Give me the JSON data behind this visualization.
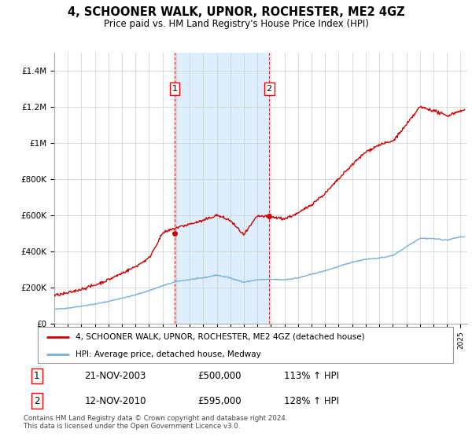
{
  "title": "4, SCHOONER WALK, UPNOR, ROCHESTER, ME2 4GZ",
  "subtitle": "Price paid vs. HM Land Registry's House Price Index (HPI)",
  "legend_line1": "4, SCHOONER WALK, UPNOR, ROCHESTER, ME2 4GZ (detached house)",
  "legend_line2": "HPI: Average price, detached house, Medway",
  "annotation1_label": "1",
  "annotation1_date": "21-NOV-2003",
  "annotation1_price": "£500,000",
  "annotation1_hpi": "113% ↑ HPI",
  "annotation2_label": "2",
  "annotation2_date": "12-NOV-2010",
  "annotation2_price": "£595,000",
  "annotation2_hpi": "128% ↑ HPI",
  "footer": "Contains HM Land Registry data © Crown copyright and database right 2024.\nThis data is licensed under the Open Government Licence v3.0.",
  "sale1_year": 2003.89,
  "sale1_price": 500000,
  "sale2_year": 2010.87,
  "sale2_price": 595000,
  "red_color": "#cc0000",
  "blue_color": "#7ab0d4",
  "highlight_color": "#ddeeff",
  "ylim_max": 1500000,
  "ytick_values": [
    0,
    200000,
    400000,
    600000,
    800000,
    1000000,
    1200000,
    1400000
  ],
  "ytick_labels": [
    "£0",
    "£200K",
    "£400K",
    "£600K",
    "£800K",
    "£1M",
    "£1.2M",
    "£1.4M"
  ],
  "xmin": 1995,
  "xmax": 2025.5,
  "hpi_years": [
    1995,
    1996,
    1997,
    1998,
    1999,
    2000,
    2001,
    2002,
    2003,
    2004,
    2005,
    2006,
    2007,
    2008,
    2009,
    2010,
    2011,
    2012,
    2013,
    2014,
    2015,
    2016,
    2017,
    2018,
    2019,
    2020,
    2021,
    2022,
    2023,
    2024,
    2025
  ],
  "hpi_values": [
    78000,
    85000,
    96000,
    107000,
    122000,
    140000,
    158000,
    182000,
    208000,
    232000,
    243000,
    252000,
    268000,
    252000,
    228000,
    242000,
    244000,
    242000,
    252000,
    272000,
    292000,
    315000,
    340000,
    356000,
    362000,
    376000,
    425000,
    472000,
    470000,
    462000,
    480000
  ],
  "red_years": [
    1995,
    1996,
    1997,
    1998,
    1999,
    2000,
    2001,
    2002,
    2003,
    2004,
    2005,
    2006,
    2007,
    2008,
    2009,
    2010,
    2011,
    2012,
    2013,
    2014,
    2015,
    2016,
    2017,
    2018,
    2019,
    2020,
    2021,
    2022,
    2023,
    2024,
    2025
  ],
  "red_values": [
    155000,
    168000,
    190000,
    212000,
    242000,
    278000,
    315000,
    362000,
    500000,
    530000,
    550000,
    570000,
    600000,
    570000,
    490000,
    595000,
    590000,
    580000,
    610000,
    660000,
    720000,
    800000,
    880000,
    950000,
    990000,
    1010000,
    1100000,
    1200000,
    1180000,
    1150000,
    1180000
  ]
}
